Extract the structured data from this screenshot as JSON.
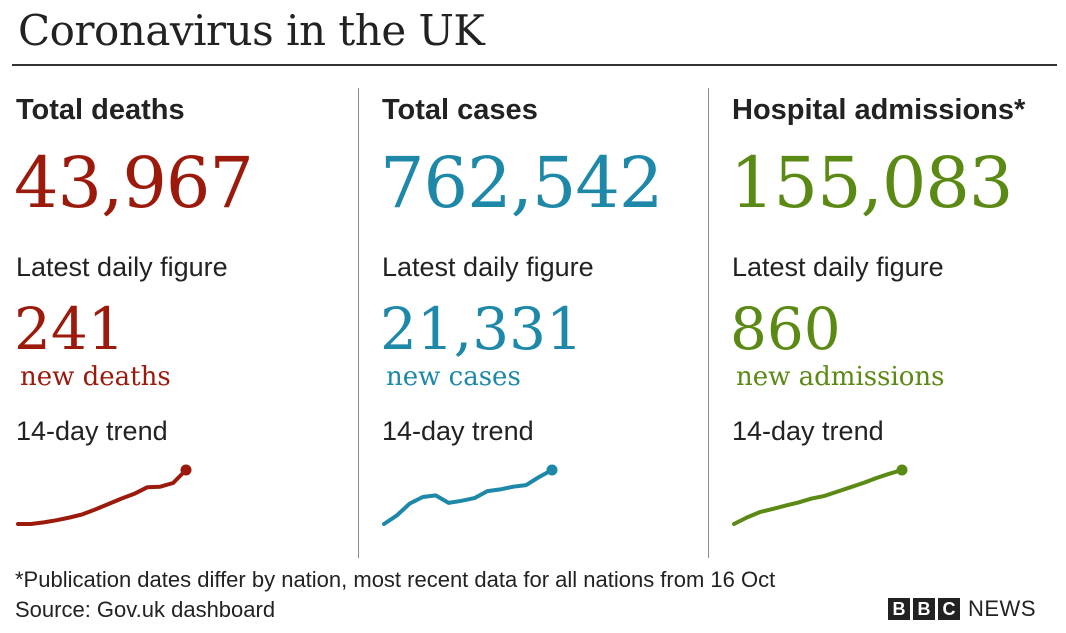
{
  "title": "Coronavirus in the UK",
  "colors": {
    "deaths": "#9b1a0c",
    "cases": "#1e88a8",
    "admissions": "#5a8a14"
  },
  "columns": [
    {
      "key": "deaths",
      "heading": "Total deaths",
      "total": "43,967",
      "daily_label": "Latest daily figure",
      "daily_value": "241",
      "daily_unit": "new deaths",
      "trend_label": "14-day trend"
    },
    {
      "key": "cases",
      "heading": "Total cases",
      "total": "762,542",
      "daily_label": "Latest daily figure",
      "daily_value": "21,331",
      "daily_unit": "new cases",
      "trend_label": "14-day trend"
    },
    {
      "key": "admissions",
      "heading": "Hospital admissions*",
      "total": "155,083",
      "daily_label": "Latest daily figure",
      "daily_value": "860",
      "daily_unit": "new admissions",
      "trend_label": "14-day trend"
    }
  ],
  "chart_data": [
    {
      "type": "line",
      "name": "deaths",
      "x": [
        1,
        2,
        3,
        4,
        5,
        6,
        7,
        8,
        9,
        10,
        11,
        12,
        13,
        14
      ],
      "values": [
        0.0,
        0.0,
        0.03,
        0.07,
        0.12,
        0.18,
        0.27,
        0.37,
        0.47,
        0.56,
        0.68,
        0.69,
        0.76,
        1.0
      ]
    },
    {
      "type": "line",
      "name": "cases",
      "x": [
        1,
        2,
        3,
        4,
        5,
        6,
        7,
        8,
        9,
        10,
        11,
        12,
        13,
        14
      ],
      "values": [
        0.0,
        0.16,
        0.38,
        0.5,
        0.53,
        0.39,
        0.43,
        0.48,
        0.61,
        0.64,
        0.69,
        0.72,
        0.87,
        1.0
      ]
    },
    {
      "type": "line",
      "name": "admissions",
      "x": [
        1,
        2,
        3,
        4,
        5,
        6,
        7,
        8,
        9,
        10,
        11,
        12,
        13,
        14
      ],
      "values": [
        0.0,
        0.12,
        0.22,
        0.28,
        0.34,
        0.4,
        0.47,
        0.52,
        0.6,
        0.68,
        0.76,
        0.85,
        0.93,
        1.0
      ]
    }
  ],
  "footnote": "*Publication dates differ by nation, most recent data for all nations from 16 Oct",
  "source": "Source: Gov.uk dashboard",
  "logo": {
    "letters": [
      "B",
      "B",
      "C"
    ],
    "word": "NEWS"
  }
}
